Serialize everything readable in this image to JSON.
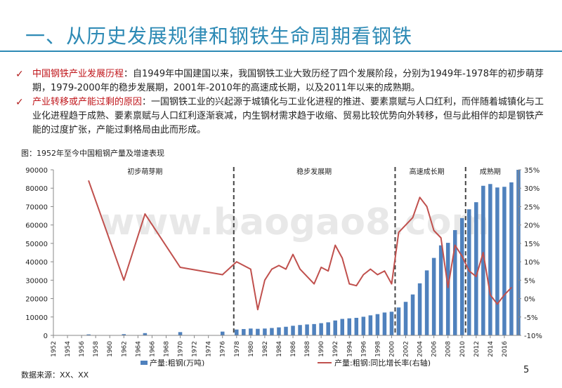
{
  "slide": {
    "title": "一、从历史发展规律和钢铁生命周期看钢铁",
    "page_number": "5",
    "source": "数据来源：XX、XX"
  },
  "bullets": [
    {
      "highlight": "中国钢铁产业发展历程",
      "text": "：自1949年中国建国以来，我国钢铁工业大致历经了四个发展阶段，分别为1949年-1978年的初步萌芽期，1979-2000年的稳步发展期，2001年-2010年的高速成长期，以及2011年以来的成熟期。"
    },
    {
      "highlight": "产业转移或产能过剩的原因",
      "text": "：一国钢铁工业的兴起源于城镇化与工业化进程的推进、要素禀赋与人口红利，而伴随着城镇化与工业化进程趋于成熟、要素禀赋与人口红利逐渐衰减，内生钢材需求趋于收缩、贸易比较优势向外转移，但与此相伴的却是钢铁产能的过度扩张，产能过剩格局由此而形成。"
    }
  ],
  "figure_caption": "图：1952年至今中国粗钢产量及增速表现",
  "watermark": "www.baogao8.com",
  "colors": {
    "title": "#2d8ab5",
    "bar": "#4f81bd",
    "line": "#c0504d",
    "highlight": "#c0161b"
  },
  "chart_data": {
    "type": "bar",
    "xlim": [
      1952,
      2018
    ],
    "x_ticks": [
      1952,
      1954,
      1956,
      1958,
      1960,
      1962,
      1964,
      1966,
      1968,
      1970,
      1972,
      1974,
      1976,
      1978,
      1980,
      1982,
      1984,
      1986,
      1988,
      1990,
      1992,
      1994,
      1996,
      1998,
      2000,
      2002,
      2004,
      2006,
      2008,
      2010,
      2012,
      2014,
      2016
    ],
    "y_left": {
      "min": 0,
      "max": 90000,
      "ticks": [
        0,
        10000,
        20000,
        30000,
        40000,
        50000,
        60000,
        70000,
        80000,
        90000
      ]
    },
    "y_right": {
      "min": -10,
      "max": 35,
      "ticks": [
        "-10%",
        "-5%",
        "0%",
        "5%",
        "10%",
        "15%",
        "20%",
        "25%",
        "30%",
        "35%"
      ],
      "tick_values": [
        -10,
        -5,
        0,
        5,
        10,
        15,
        20,
        25,
        30,
        35
      ]
    },
    "phases": [
      {
        "label": "初步萌芽期",
        "start": 1952,
        "end": 1978
      },
      {
        "label": "稳步发展期",
        "start": 1978,
        "end": 2000
      },
      {
        "label": "高速成长期",
        "start": 2000,
        "end": 2010
      },
      {
        "label": "成熟期",
        "start": 2010,
        "end": 2018
      }
    ],
    "phase_dividers": [
      1977.6,
      2000.5,
      2010.5
    ],
    "grid": false,
    "legend_position": "bottom",
    "series": [
      {
        "name": "产量:粗钢(万吨)",
        "kind": "bar",
        "axis": "left",
        "x": [
          1952,
          1957,
          1962,
          1965,
          1970,
          1976,
          1978,
          1979,
          1980,
          1981,
          1982,
          1983,
          1984,
          1985,
          1986,
          1987,
          1988,
          1989,
          1990,
          1991,
          1992,
          1993,
          1994,
          1995,
          1996,
          1997,
          1998,
          1999,
          2000,
          2001,
          2002,
          2003,
          2004,
          2005,
          2006,
          2007,
          2008,
          2009,
          2010,
          2011,
          2012,
          2013,
          2014,
          2015,
          2016,
          2017,
          2018
        ],
        "values": [
          135,
          535,
          667,
          1223,
          1779,
          2046,
          3178,
          3448,
          3712,
          3560,
          3716,
          4002,
          4347,
          4679,
          5221,
          5628,
          5943,
          6159,
          6635,
          7100,
          8094,
          8956,
          9261,
          9536,
          10124,
          10894,
          11559,
          12426,
          12850,
          15163,
          18225,
          22234,
          28291,
          35324,
          42102,
          48929,
          50306,
          57218,
          63723,
          68528,
          72388,
          81314,
          82270,
          80383,
          80761,
          83173,
          92826
        ]
      },
      {
        "name": "产量:粗钢:同比增长率(右轴)",
        "kind": "line",
        "axis": "right",
        "x": [
          1957,
          1962,
          1965,
          1970,
          1976,
          1978,
          1979,
          1980,
          1981,
          1982,
          1983,
          1984,
          1985,
          1986,
          1987,
          1988,
          1989,
          1990,
          1991,
          1992,
          1993,
          1994,
          1995,
          1996,
          1997,
          1998,
          1999,
          2000,
          2001,
          2002,
          2003,
          2004,
          2005,
          2006,
          2007,
          2008,
          2009,
          2010,
          2011,
          2012,
          2013,
          2014,
          2015,
          2016,
          2017
        ],
        "values": [
          32,
          5,
          23,
          8.5,
          6.5,
          10,
          9,
          8,
          -3,
          5,
          8,
          9,
          8,
          12,
          8,
          6,
          4,
          8.5,
          7.5,
          14.5,
          11,
          4,
          3.5,
          6.5,
          8,
          6.5,
          7.5,
          4,
          18,
          20,
          22,
          27.5,
          25,
          18.5,
          16.5,
          3,
          14.5,
          11.5,
          7.5,
          6,
          12.5,
          1,
          -1.5,
          1,
          3
        ]
      }
    ]
  }
}
